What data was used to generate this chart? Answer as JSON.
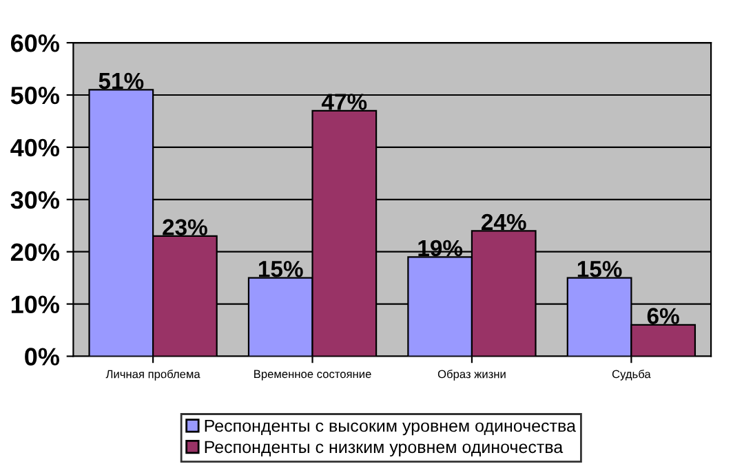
{
  "chart_data": {
    "type": "bar",
    "categories": [
      "Личная проблема",
      "Временное состояние",
      "Образ жизни",
      "Судьба"
    ],
    "series": [
      {
        "name": "Респонденты с высоким уровнем одиночества",
        "color": "#9999ff",
        "values": [
          51,
          15,
          19,
          15
        ],
        "value_labels": [
          "51%",
          "15%",
          "19%",
          "15%"
        ]
      },
      {
        "name": "Респонденты с низким уровнем одиночества",
        "color": "#993366",
        "values": [
          23,
          47,
          24,
          6
        ],
        "value_labels": [
          "23%",
          "47%",
          "24%",
          "6%"
        ]
      }
    ],
    "ylim": [
      0,
      60
    ],
    "yticks": [
      {
        "value": 0,
        "label": "0%"
      },
      {
        "value": 10,
        "label": "10%"
      },
      {
        "value": 20,
        "label": "20%"
      },
      {
        "value": 30,
        "label": "30%"
      },
      {
        "value": 40,
        "label": "40%"
      },
      {
        "value": 50,
        "label": "50%"
      },
      {
        "value": 60,
        "label": "60%"
      }
    ],
    "grid": "y",
    "legend": "bottom"
  }
}
